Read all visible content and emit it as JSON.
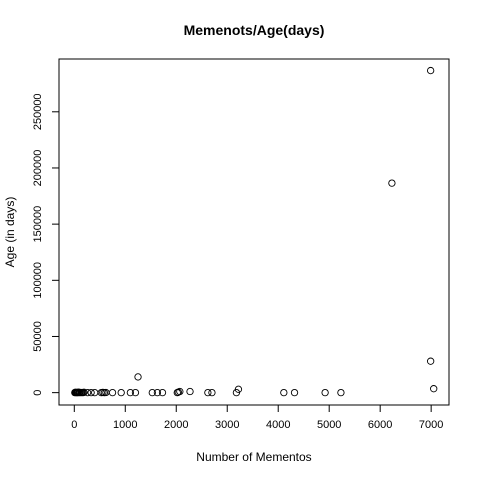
{
  "chart_data": {
    "type": "scatter",
    "title": "Memenots/Age(days)",
    "xlabel": "Number of Mementos",
    "ylabel": "Age (in days)",
    "xlim": [
      -300,
      7350
    ],
    "ylim": [
      -11000,
      297000
    ],
    "xticks": [
      0,
      1000,
      2000,
      3000,
      4000,
      5000,
      6000,
      7000
    ],
    "xtick_labels": [
      "0",
      "1000",
      "2000",
      "3000",
      "4000",
      "5000",
      "6000",
      "7000"
    ],
    "yticks": [
      0,
      50000,
      100000,
      150000,
      200000,
      250000
    ],
    "ytick_labels": [
      "0",
      "50000",
      "100000",
      "150000",
      "200000",
      "250000"
    ],
    "grid": false,
    "points": [
      {
        "x": 10,
        "y": 0
      },
      {
        "x": 20,
        "y": 300
      },
      {
        "x": 30,
        "y": 0
      },
      {
        "x": 40,
        "y": 200
      },
      {
        "x": 50,
        "y": 0
      },
      {
        "x": 60,
        "y": 100
      },
      {
        "x": 70,
        "y": 0
      },
      {
        "x": 80,
        "y": 400
      },
      {
        "x": 95,
        "y": 0
      },
      {
        "x": 110,
        "y": 200
      },
      {
        "x": 130,
        "y": 0
      },
      {
        "x": 150,
        "y": 100
      },
      {
        "x": 170,
        "y": 0
      },
      {
        "x": 190,
        "y": 300
      },
      {
        "x": 260,
        "y": 0
      },
      {
        "x": 330,
        "y": 0
      },
      {
        "x": 400,
        "y": 0
      },
      {
        "x": 530,
        "y": 0
      },
      {
        "x": 560,
        "y": 200
      },
      {
        "x": 590,
        "y": 0
      },
      {
        "x": 620,
        "y": 100
      },
      {
        "x": 750,
        "y": 0
      },
      {
        "x": 920,
        "y": 0
      },
      {
        "x": 1100,
        "y": 0
      },
      {
        "x": 1200,
        "y": 0
      },
      {
        "x": 1250,
        "y": 14000
      },
      {
        "x": 1530,
        "y": 0
      },
      {
        "x": 1630,
        "y": 0
      },
      {
        "x": 1730,
        "y": 0
      },
      {
        "x": 2020,
        "y": 0
      },
      {
        "x": 2040,
        "y": 400
      },
      {
        "x": 2070,
        "y": 1000
      },
      {
        "x": 2270,
        "y": 1000
      },
      {
        "x": 2620,
        "y": 0
      },
      {
        "x": 2700,
        "y": 0
      },
      {
        "x": 3180,
        "y": 0
      },
      {
        "x": 3220,
        "y": 3000
      },
      {
        "x": 4110,
        "y": 0
      },
      {
        "x": 4320,
        "y": 0
      },
      {
        "x": 4920,
        "y": 0
      },
      {
        "x": 5230,
        "y": 0
      },
      {
        "x": 6230,
        "y": 186500
      },
      {
        "x": 6990,
        "y": 286700
      },
      {
        "x": 6990,
        "y": 28000
      },
      {
        "x": 7050,
        "y": 3500
      }
    ]
  }
}
